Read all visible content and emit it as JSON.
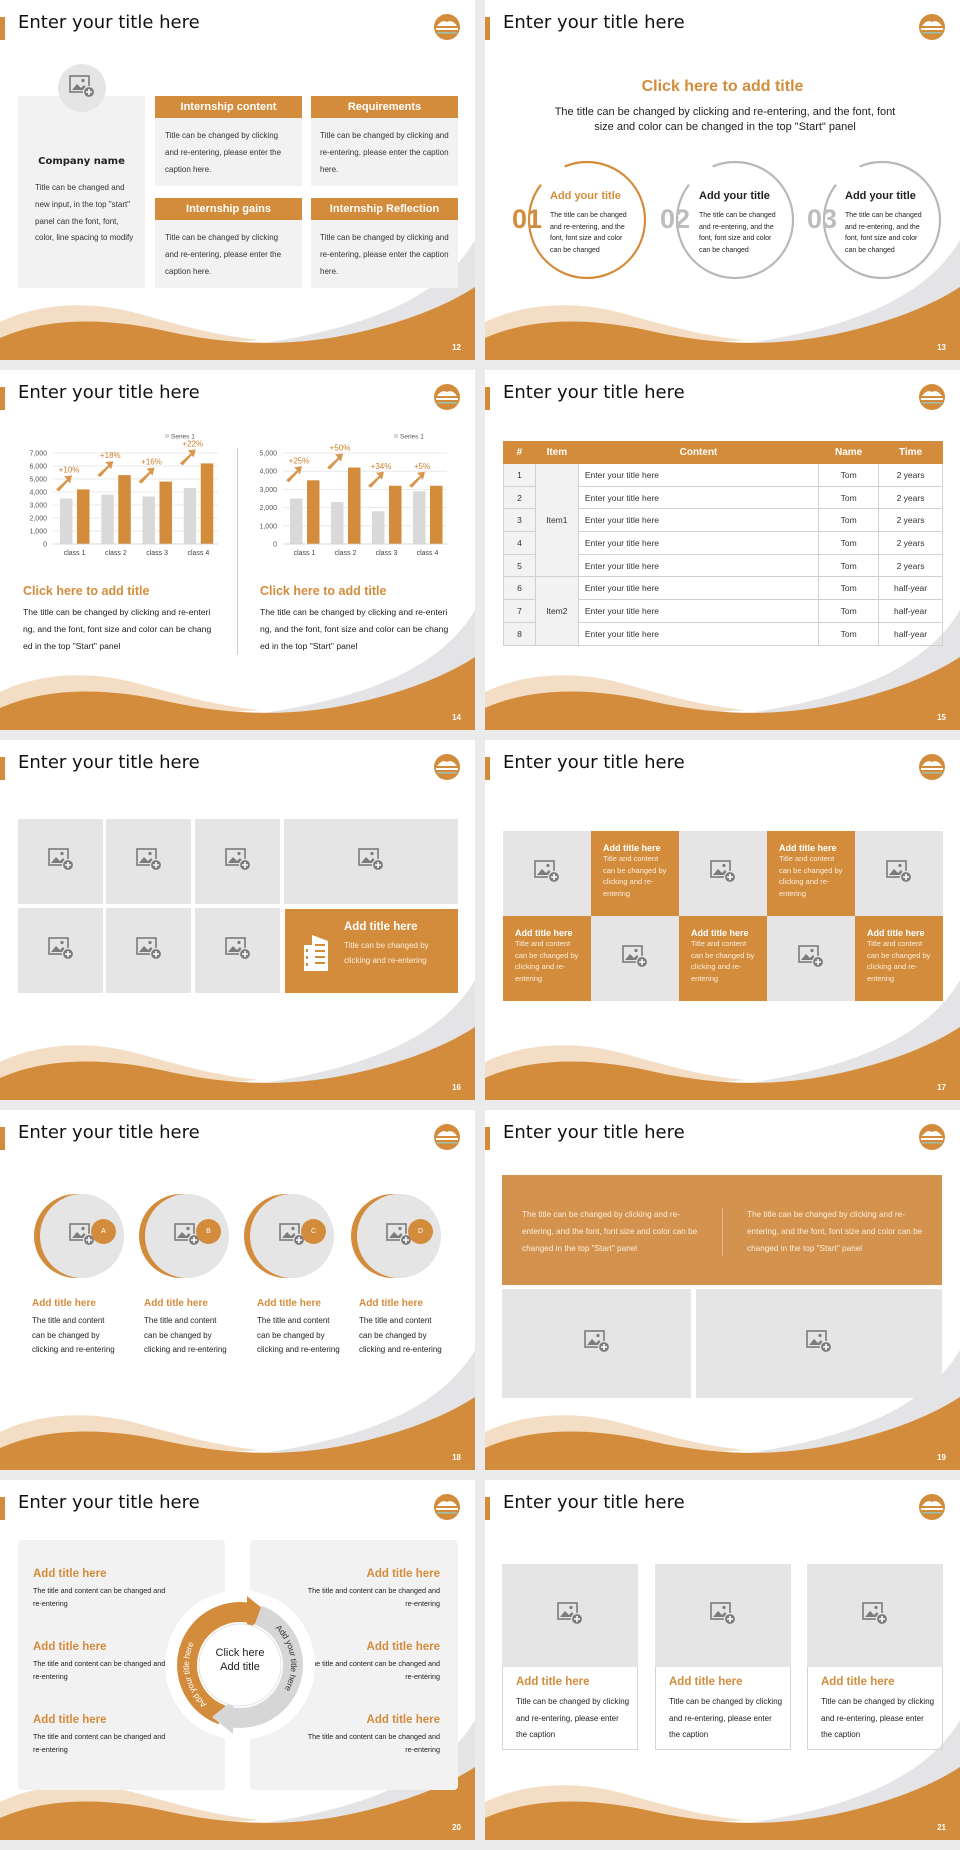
{
  "colors": {
    "accent": "#d38c3c",
    "tile": "#e6e5e5",
    "panel": "#f2f2f2",
    "background": "#ebebeb"
  },
  "icons": {
    "image_placeholder": "image-add-icon",
    "logo": "sun-over-sea-logo",
    "building": "building-icon"
  },
  "s12": {
    "title": "Enter your title here",
    "page": "12",
    "company": {
      "name": "Company name",
      "text": "Title can be changed and new input, in the top \"start\" panel can the font, font, color, line spacing to modify"
    },
    "boxes": [
      {
        "header": "Internship content",
        "body": "Title can be changed by clicking and re-entering, please enter the caption here."
      },
      {
        "header": "Requirements",
        "body": "Title can be changed by clicking and re-entering, please enter the caption here."
      },
      {
        "header": "Internship gains",
        "body": "Title can be changed by clicking and re-entering, please enter the caption here."
      },
      {
        "header": "Internship Reflection",
        "body": "Title can be changed by clicking and re-entering, please enter the caption here."
      }
    ]
  },
  "s13": {
    "title": "Enter your title here",
    "page": "13",
    "heading": "Click here to add title",
    "subtitle": "The title can be changed by clicking and re-entering, and the font, font size and color can be changed in the top \"Start\" panel",
    "items": [
      {
        "num": "01",
        "title": "Add your title",
        "body": "The title can be changed and re-entering, and the font, font size and color can be changed"
      },
      {
        "num": "02",
        "title": "Add your title",
        "body": "The title can be changed and re-entering, and the font, font size and color can be changed"
      },
      {
        "num": "03",
        "title": "Add your title",
        "body": "The title can be changed and re-entering, and the font, font size and color can be changed"
      }
    ]
  },
  "s14": {
    "title": "Enter your title here",
    "page": "14",
    "texts": [
      {
        "heading": "Click here to add title",
        "body": "The title can be changed by clicking and re-entering, and the font, font size and color can be changed in the top \"Start\" panel"
      },
      {
        "heading": "Click here to add title",
        "body": "The title can be changed by clicking and re-entering, and the font, font size and color can be changed in the top \"Start\" panel"
      }
    ]
  },
  "chart_data": [
    {
      "type": "bar",
      "categories": [
        "class 1",
        "class 2",
        "class 3",
        "class 4"
      ],
      "series": [
        {
          "name": "Series 1",
          "values": [
            3500,
            3800,
            3650,
            4300
          ],
          "color": "#d9d9d9"
        },
        {
          "values": [
            4200,
            5300,
            4800,
            6200
          ],
          "color": "#d38c3c"
        }
      ],
      "annotations": [
        "+10%",
        "+18%",
        "+16%",
        "+22%"
      ],
      "ylim": [
        0,
        7000
      ],
      "yticks": [
        "0",
        "1,000",
        "2,000",
        "3,000",
        "4,000",
        "5,000",
        "6,000",
        "7,000"
      ],
      "legend": "top-right",
      "grid": true,
      "title": "",
      "xlabel": "",
      "ylabel": ""
    },
    {
      "type": "bar",
      "categories": [
        "class 1",
        "class 2",
        "class 3",
        "class 4"
      ],
      "series": [
        {
          "name": "Series 1",
          "values": [
            2500,
            2300,
            1800,
            2900
          ],
          "color": "#d9d9d9"
        },
        {
          "values": [
            3500,
            4200,
            3200,
            3200
          ],
          "color": "#d38c3c"
        }
      ],
      "annotations": [
        "+25%",
        "+50%",
        "+34%",
        "+5%"
      ],
      "ylim": [
        0,
        5000
      ],
      "yticks": [
        "0",
        "1,000",
        "2,000",
        "3,000",
        "4,000",
        "5,000"
      ],
      "legend": "top-right",
      "grid": true,
      "title": "",
      "xlabel": "",
      "ylabel": ""
    }
  ],
  "s15": {
    "title": "Enter your title here",
    "page": "15",
    "table": {
      "headers": [
        "#",
        "Item",
        "Content",
        "Name",
        "Time"
      ],
      "groups": [
        {
          "label": "Item1",
          "span": 5
        },
        {
          "label": "Item2",
          "span": 3
        }
      ],
      "rows": [
        [
          "1",
          "Enter your title here",
          "Tom",
          "2 years"
        ],
        [
          "2",
          "Enter your title here",
          "Tom",
          "2 years"
        ],
        [
          "3",
          "Enter your title here",
          "Tom",
          "2 years"
        ],
        [
          "4",
          "Enter your title here",
          "Tom",
          "2 years"
        ],
        [
          "5",
          "Enter your title here",
          "Tom",
          "2 years"
        ],
        [
          "6",
          "Enter your title here",
          "Tom",
          "half-year"
        ],
        [
          "7",
          "Enter your title here",
          "Tom",
          "half-year"
        ],
        [
          "8",
          "Enter your title here",
          "Tom",
          "half-year"
        ]
      ]
    }
  },
  "s16": {
    "title": "Enter your title here",
    "page": "16",
    "card": {
      "title": "Add title here",
      "body": "Title can be changed by clicking and re-entering"
    }
  },
  "s17": {
    "title": "Enter your title here",
    "page": "17",
    "tiles": [
      {
        "title": "Add title here",
        "body": "Title and content can be changed by clicking and re-entering"
      },
      {
        "title": "Add title here",
        "body": "Title and content can be changed by clicking and re-entering"
      },
      {
        "title": "Add title here",
        "body": "Title and content can be changed by clicking and re-entering"
      },
      {
        "title": "Add title here",
        "body": "Title and content can be changed by clicking and re-entering"
      },
      {
        "title": "Add title here",
        "body": "Title and content can be changed by clicking and re-entering"
      }
    ]
  },
  "s18": {
    "title": "Enter your title here",
    "page": "18",
    "items": [
      {
        "badge": "A",
        "title": "Add title here",
        "body": "The title and content can be changed by clicking and re-entering"
      },
      {
        "badge": "B",
        "title": "Add title here",
        "body": "The title and content can be changed by clicking and re-entering"
      },
      {
        "badge": "C",
        "title": "Add title here",
        "body": "The title and content can be changed by clicking and re-entering"
      },
      {
        "badge": "D",
        "title": "Add title here",
        "body": "The title and content can be changed by clicking and re-entering"
      }
    ]
  },
  "s19": {
    "title": "Enter your title here",
    "page": "19",
    "texts": [
      "The title can be changed by clicking and re-entering, and the font, font size and color can be changed in the top \"Start\" panel",
      "The title can be changed by clicking and re-entering, and the font, font size and color can be changed in the top \"Start\" panel"
    ]
  },
  "s20": {
    "title": "Enter your title here",
    "page": "20",
    "center": "Click here Add title",
    "arc_left": "Add your title here",
    "arc_right": "Add your title here",
    "items": [
      {
        "title": "Add title here",
        "body": "The title and content can be changed and re-entering"
      },
      {
        "title": "Add title here",
        "body": "The title and content can be changed and re-entering"
      },
      {
        "title": "Add title here",
        "body": "The title and content can be changed and re-entering"
      },
      {
        "title": "Add title here",
        "body": "The title and content can be changed and re-entering"
      },
      {
        "title": "Add title here",
        "body": "The title and content can be changed and re-entering"
      },
      {
        "title": "Add title here",
        "body": "The title and content can be changed and re-entering"
      }
    ]
  },
  "s21": {
    "title": "Enter your title here",
    "page": "21",
    "cards": [
      {
        "title": "Add title here",
        "body": "Title can be changed by clicking and re-entering, please enter the caption"
      },
      {
        "title": "Add title here",
        "body": "Title can be changed by clicking and re-entering, please enter the caption"
      },
      {
        "title": "Add title here",
        "body": "Title can be changed by clicking and re-entering, please enter the caption"
      }
    ]
  }
}
